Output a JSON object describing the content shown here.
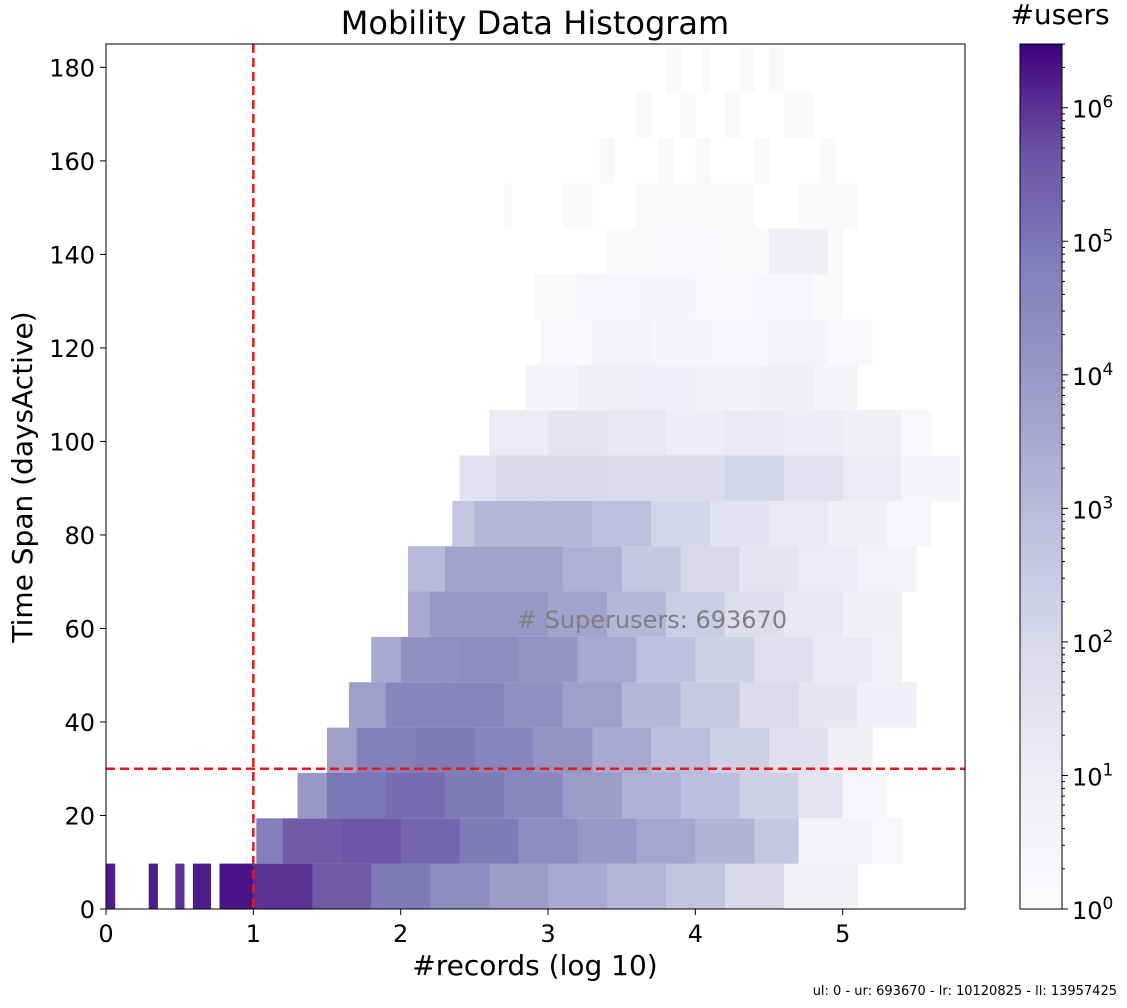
{
  "chart_data": {
    "type": "heatmap",
    "title": "Mobility Data Histogram",
    "xlabel": "#records (log 10)",
    "ylabel": "Time Span (daysActive)",
    "xlim": [
      0,
      5.83
    ],
    "ylim": [
      0,
      185
    ],
    "x_ticks": [
      "0",
      "1",
      "2",
      "3",
      "4",
      "5"
    ],
    "y_ticks": [
      "0",
      "20",
      "40",
      "60",
      "80",
      "100",
      "120",
      "140",
      "160",
      "180"
    ],
    "colorbar": {
      "label": "#users",
      "scale": "log",
      "range": [
        1,
        3000000
      ],
      "tick_base": "10",
      "tick_exponents": [
        "0",
        "1",
        "2",
        "3",
        "4",
        "5",
        "6"
      ],
      "colormap_low": "#fcfbfd",
      "colormap_high": "#3f007d"
    },
    "reference_lines": [
      {
        "orientation": "vertical",
        "x": 1,
        "color": "#e41a1c",
        "style": "dashed"
      },
      {
        "orientation": "horizontal",
        "y": 30,
        "color": "#e41a1c",
        "style": "dashed"
      }
    ],
    "annotation": "# Superusers: 693670",
    "bin_height_days": 9.7,
    "rows": [
      {
        "y0": 0,
        "segments": [
          [
            0.0,
            0.06,
            6.2
          ],
          [
            0.29,
            0.35,
            6.2
          ],
          [
            0.47,
            0.53,
            6.0
          ],
          [
            0.59,
            0.71,
            6.2
          ],
          [
            0.77,
            1.0,
            6.3
          ],
          [
            1.0,
            1.4,
            6.0
          ],
          [
            1.4,
            1.8,
            5.5
          ],
          [
            1.8,
            2.2,
            4.9
          ],
          [
            2.2,
            2.6,
            4.4
          ],
          [
            2.6,
            3.0,
            3.9
          ],
          [
            3.0,
            3.4,
            3.5
          ],
          [
            3.4,
            3.8,
            3.1
          ],
          [
            3.8,
            4.2,
            2.7
          ],
          [
            4.2,
            4.6,
            2.0
          ],
          [
            4.6,
            5.1,
            0.7
          ]
        ]
      },
      {
        "y0": 9.7,
        "segments": [
          [
            1.02,
            1.2,
            4.8
          ],
          [
            1.2,
            1.6,
            5.5
          ],
          [
            1.6,
            2.0,
            5.6
          ],
          [
            2.0,
            2.4,
            5.3
          ],
          [
            2.4,
            2.8,
            4.9
          ],
          [
            2.8,
            3.2,
            4.4
          ],
          [
            3.2,
            3.6,
            4.0
          ],
          [
            3.6,
            4.0,
            3.6
          ],
          [
            4.0,
            4.4,
            3.2
          ],
          [
            4.4,
            4.7,
            2.6
          ],
          [
            4.7,
            5.2,
            0.6
          ],
          [
            5.2,
            5.4,
            0.3
          ]
        ]
      },
      {
        "y0": 19.4,
        "segments": [
          [
            1.3,
            1.5,
            4.0
          ],
          [
            1.5,
            1.9,
            5.0
          ],
          [
            1.9,
            2.3,
            5.2
          ],
          [
            2.3,
            2.7,
            4.9
          ],
          [
            2.7,
            3.1,
            4.5
          ],
          [
            3.1,
            3.5,
            3.9
          ],
          [
            3.5,
            3.9,
            3.3
          ],
          [
            3.9,
            4.3,
            2.9
          ],
          [
            4.3,
            4.7,
            2.3
          ],
          [
            4.7,
            5.0,
            1.5
          ],
          [
            5.0,
            5.3,
            0.4
          ]
        ]
      },
      {
        "y0": 29.1,
        "segments": [
          [
            1.5,
            1.7,
            3.8
          ],
          [
            1.7,
            2.1,
            4.8
          ],
          [
            2.1,
            2.5,
            4.9
          ],
          [
            2.5,
            2.9,
            4.6
          ],
          [
            2.9,
            3.3,
            4.2
          ],
          [
            3.3,
            3.7,
            3.5
          ],
          [
            3.7,
            4.1,
            2.9
          ],
          [
            4.1,
            4.5,
            2.3
          ],
          [
            4.5,
            4.9,
            1.7
          ],
          [
            4.9,
            5.2,
            0.8
          ]
        ]
      },
      {
        "y0": 38.8,
        "segments": [
          [
            1.65,
            1.9,
            3.8
          ],
          [
            1.9,
            2.3,
            4.6
          ],
          [
            2.3,
            2.7,
            4.6
          ],
          [
            2.7,
            3.1,
            4.3
          ],
          [
            3.1,
            3.5,
            3.8
          ],
          [
            3.5,
            3.9,
            3.1
          ],
          [
            3.9,
            4.3,
            2.5
          ],
          [
            4.3,
            4.7,
            1.9
          ],
          [
            4.7,
            5.1,
            1.4
          ],
          [
            5.1,
            5.5,
            0.9
          ]
        ]
      },
      {
        "y0": 48.5,
        "segments": [
          [
            1.8,
            2.0,
            3.5
          ],
          [
            2.0,
            2.4,
            4.3
          ],
          [
            2.4,
            2.8,
            4.4
          ],
          [
            2.8,
            3.2,
            4.1
          ],
          [
            3.2,
            3.6,
            3.5
          ],
          [
            3.6,
            4.0,
            2.8
          ],
          [
            4.0,
            4.4,
            2.2
          ],
          [
            4.4,
            4.8,
            1.7
          ],
          [
            4.8,
            5.2,
            1.2
          ],
          [
            5.2,
            5.4,
            0.7
          ]
        ]
      },
      {
        "y0": 58.2,
        "segments": [
          [
            2.05,
            2.2,
            3.5
          ],
          [
            2.2,
            2.6,
            4.0
          ],
          [
            2.6,
            3.0,
            4.0
          ],
          [
            3.0,
            3.4,
            3.7
          ],
          [
            3.4,
            3.8,
            3.1
          ],
          [
            3.8,
            4.2,
            2.4
          ],
          [
            4.2,
            4.6,
            1.8
          ],
          [
            4.6,
            5.0,
            1.3
          ],
          [
            5.0,
            5.4,
            0.8
          ]
        ]
      },
      {
        "y0": 67.9,
        "segments": [
          [
            2.05,
            2.3,
            3.0
          ],
          [
            2.3,
            2.7,
            3.7
          ],
          [
            2.7,
            3.1,
            3.7
          ],
          [
            3.1,
            3.5,
            3.3
          ],
          [
            3.5,
            3.9,
            2.6
          ],
          [
            3.9,
            4.3,
            2.0
          ],
          [
            4.3,
            4.7,
            1.5
          ],
          [
            4.7,
            5.1,
            1.1
          ],
          [
            5.1,
            5.5,
            0.6
          ]
        ]
      },
      {
        "y0": 77.6,
        "segments": [
          [
            2.35,
            2.5,
            2.6
          ],
          [
            2.5,
            2.9,
            3.1
          ],
          [
            2.9,
            3.3,
            3.1
          ],
          [
            3.3,
            3.7,
            2.8
          ],
          [
            3.7,
            4.1,
            2.1
          ],
          [
            4.1,
            4.5,
            1.6
          ],
          [
            4.5,
            4.9,
            1.2
          ],
          [
            4.9,
            5.3,
            0.8
          ],
          [
            5.3,
            5.6,
            0.4
          ]
        ]
      },
      {
        "y0": 87.3,
        "segments": [
          [
            2.4,
            2.65,
            1.6
          ],
          [
            2.65,
            3.0,
            2.0
          ],
          [
            3.0,
            3.4,
            2.0
          ],
          [
            3.4,
            3.8,
            1.9
          ],
          [
            3.8,
            4.2,
            1.9
          ],
          [
            4.2,
            4.6,
            2.1
          ],
          [
            4.6,
            5.0,
            1.6
          ],
          [
            5.0,
            5.4,
            1.1
          ],
          [
            5.4,
            5.8,
            0.5
          ]
        ]
      },
      {
        "y0": 97.0,
        "segments": [
          [
            2.6,
            3.0,
            1.1
          ],
          [
            3.0,
            3.4,
            1.5
          ],
          [
            3.4,
            3.8,
            1.3
          ],
          [
            3.8,
            4.2,
            1.0
          ],
          [
            4.2,
            4.6,
            1.2
          ],
          [
            4.6,
            5.0,
            1.0
          ],
          [
            5.0,
            5.4,
            0.8
          ],
          [
            5.4,
            5.6,
            0.3
          ]
        ]
      },
      {
        "y0": 106.7,
        "segments": [
          [
            2.85,
            3.2,
            0.5
          ],
          [
            3.2,
            3.6,
            0.8
          ],
          [
            3.6,
            4.0,
            0.9
          ],
          [
            4.0,
            4.4,
            0.7
          ],
          [
            4.4,
            4.8,
            0.8
          ],
          [
            4.8,
            5.1,
            0.5
          ]
        ]
      },
      {
        "y0": 116.4,
        "segments": [
          [
            2.95,
            3.3,
            0.3
          ],
          [
            3.3,
            3.7,
            0.6
          ],
          [
            3.7,
            4.1,
            0.5
          ],
          [
            4.1,
            4.5,
            0.4
          ],
          [
            4.5,
            4.9,
            0.6
          ],
          [
            4.9,
            5.2,
            0.3
          ]
        ]
      },
      {
        "y0": 126.1,
        "segments": [
          [
            2.9,
            3.2,
            0.2
          ],
          [
            3.2,
            3.6,
            0.4
          ],
          [
            3.6,
            4.0,
            0.5
          ],
          [
            4.0,
            4.4,
            0.3
          ],
          [
            4.4,
            4.8,
            0.4
          ],
          [
            4.8,
            5.0,
            0.2
          ]
        ]
      },
      {
        "y0": 135.8,
        "segments": [
          [
            3.4,
            3.7,
            0.2
          ],
          [
            3.7,
            4.1,
            0.3
          ],
          [
            4.1,
            4.5,
            0.2
          ],
          [
            4.5,
            4.9,
            0.8
          ],
          [
            4.9,
            5.0,
            0.2
          ]
        ]
      },
      {
        "y0": 145.5,
        "segments": [
          [
            2.7,
            2.75,
            0.2
          ],
          [
            3.1,
            3.3,
            0.2
          ],
          [
            3.6,
            4.0,
            0.2
          ],
          [
            4.0,
            4.4,
            0.2
          ],
          [
            4.7,
            5.1,
            0.2
          ]
        ]
      },
      {
        "y0": 155.2,
        "segments": [
          [
            3.35,
            3.45,
            0.2
          ],
          [
            3.75,
            3.85,
            0.2
          ],
          [
            4.0,
            4.1,
            0.2
          ],
          [
            4.4,
            4.5,
            0.2
          ],
          [
            4.85,
            4.95,
            0.2
          ]
        ]
      },
      {
        "y0": 164.9,
        "segments": [
          [
            3.6,
            3.7,
            0.2
          ],
          [
            3.9,
            4.0,
            0.2
          ],
          [
            4.2,
            4.3,
            0.2
          ],
          [
            4.6,
            4.8,
            0.2
          ]
        ]
      },
      {
        "y0": 174.6,
        "segments": [
          [
            3.8,
            3.9,
            0.2
          ],
          [
            4.05,
            4.1,
            0.2
          ],
          [
            4.3,
            4.4,
            0.2
          ],
          [
            4.5,
            4.6,
            0.2
          ]
        ]
      }
    ]
  },
  "footer_text": "ul: 0 - ur: 693670 - lr: 10120825 - ll: 13957425"
}
